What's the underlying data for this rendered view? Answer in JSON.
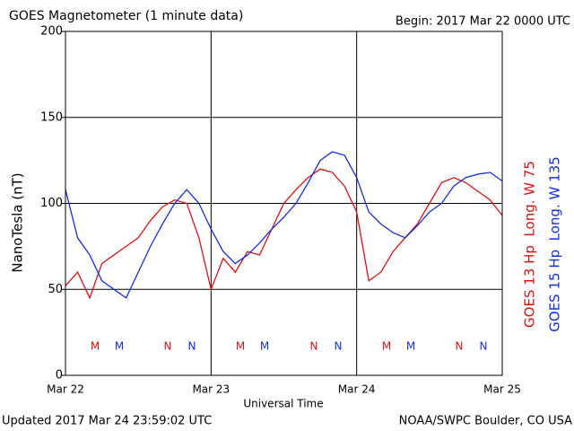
{
  "chart_data": {
    "type": "line",
    "title": "GOES Magnetometer (1 minute data)",
    "subtitle": "Begin:  2017 Mar 22 0000 UTC",
    "y_label": "NanoTesla (nT)",
    "x_label": "Universal Time",
    "footer_left": "Updated 2017 Mar 24 23:59:02 UTC",
    "footer_right": "NOAA/SWPC Boulder, CO USA",
    "categories": [
      "Mar 22",
      null,
      null,
      null,
      null,
      null,
      null,
      null,
      null,
      null,
      null,
      null,
      "Mar 23",
      null,
      null,
      null,
      null,
      null,
      null,
      null,
      null,
      null,
      null,
      null,
      "Mar 24",
      null,
      null,
      null,
      null,
      null,
      null,
      null,
      null,
      null,
      null,
      null,
      "Mar 25"
    ],
    "series": [
      {
        "name": "GOES 13 Hp  Long. W 75",
        "color": "#e01010",
        "values": [
          52,
          60,
          45,
          65,
          70,
          75,
          80,
          90,
          98,
          102,
          100,
          80,
          50,
          68,
          60,
          72,
          70,
          85,
          100,
          108,
          115,
          120,
          118,
          110,
          95,
          55,
          60,
          72,
          80,
          88,
          100,
          112,
          115,
          112,
          107,
          102,
          93
        ]
      },
      {
        "name": "GOES 15 Hp  Long. W 135",
        "color": "#1030e0",
        "values": [
          108,
          80,
          70,
          55,
          50,
          45,
          60,
          75,
          88,
          100,
          108,
          100,
          85,
          72,
          65,
          70,
          77,
          85,
          92,
          100,
          112,
          125,
          130,
          128,
          115,
          95,
          88,
          83,
          80,
          87,
          95,
          100,
          110,
          115,
          117,
          118,
          113
        ]
      }
    ],
    "annotations": [
      {
        "text": "M",
        "color": "#e01010"
      },
      {
        "text": "M",
        "color": "#1030e0"
      },
      {
        "text": "N",
        "color": "#e01010"
      },
      {
        "text": "N",
        "color": "#1030e0"
      },
      {
        "text": "M",
        "color": "#e01010"
      },
      {
        "text": "M",
        "color": "#1030e0"
      },
      {
        "text": "N",
        "color": "#e01010"
      },
      {
        "text": "N",
        "color": "#1030e0"
      },
      {
        "text": "M",
        "color": "#e01010"
      },
      {
        "text": "M",
        "color": "#1030e0"
      },
      {
        "text": "N",
        "color": "#e01010"
      },
      {
        "text": "N",
        "color": "#1030e0"
      }
    ],
    "ylim": [
      0,
      200
    ],
    "yticks": [
      0,
      50,
      100,
      150,
      200
    ],
    "grid": true
  }
}
